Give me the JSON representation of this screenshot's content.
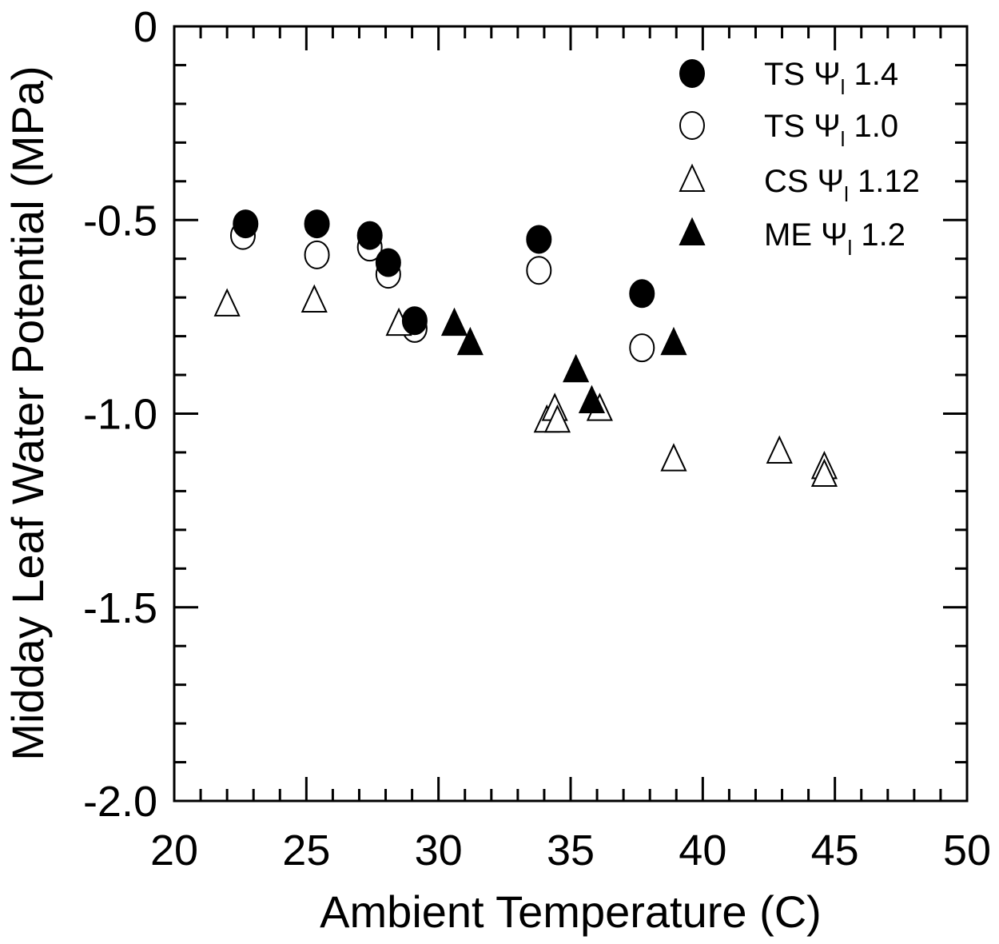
{
  "chart_data": {
    "type": "scatter",
    "xlabel": "Ambient Temperature (C)",
    "ylabel": "Midday Leaf Water Potential (MPa)",
    "xlim": [
      20,
      50
    ],
    "ylim": [
      -2.0,
      0
    ],
    "xticks": [
      "20",
      "25",
      "30",
      "35",
      "40",
      "45",
      "50"
    ],
    "yticks": [
      "0",
      "-0.5",
      "-1.0",
      "-1.5",
      "-2.0"
    ],
    "grid": false,
    "legend_position": "top-right",
    "series": [
      {
        "name": "TS Ψl 1.4",
        "legend_prefix": "TS Ψ",
        "legend_sub": "l",
        "legend_suffix": " 1.4",
        "marker": "filled-circle",
        "points": [
          [
            22.7,
            -0.51
          ],
          [
            25.4,
            -0.51
          ],
          [
            27.4,
            -0.54
          ],
          [
            28.1,
            -0.61
          ],
          [
            29.1,
            -0.76
          ],
          [
            33.8,
            -0.55
          ],
          [
            37.7,
            -0.69
          ]
        ]
      },
      {
        "name": "TS Ψl 1.0",
        "legend_prefix": "TS Ψ",
        "legend_sub": "l",
        "legend_suffix": " 1.0",
        "marker": "open-circle",
        "points": [
          [
            22.6,
            -0.54
          ],
          [
            25.4,
            -0.59
          ],
          [
            27.4,
            -0.57
          ],
          [
            28.1,
            -0.64
          ],
          [
            29.1,
            -0.78
          ],
          [
            33.8,
            -0.63
          ],
          [
            37.7,
            -0.83
          ]
        ]
      },
      {
        "name": "CS Ψl 1.12",
        "legend_prefix": "CS Ψ",
        "legend_sub": "l",
        "legend_suffix": " 1.12",
        "marker": "open-triangle",
        "points": [
          [
            22.0,
            -0.72
          ],
          [
            25.3,
            -0.71
          ],
          [
            28.5,
            -0.77
          ],
          [
            34.1,
            -1.02
          ],
          [
            34.4,
            -0.99
          ],
          [
            34.5,
            -1.02
          ],
          [
            36.1,
            -0.99
          ],
          [
            38.9,
            -1.12
          ],
          [
            42.9,
            -1.1
          ],
          [
            44.6,
            -1.14
          ],
          [
            44.6,
            -1.16
          ]
        ]
      },
      {
        "name": "ME Ψl 1.2",
        "legend_prefix": "ME Ψ",
        "legend_sub": "l",
        "legend_suffix": " 1.2",
        "marker": "filled-triangle",
        "points": [
          [
            30.6,
            -0.77
          ],
          [
            31.2,
            -0.82
          ],
          [
            35.2,
            -0.89
          ],
          [
            35.8,
            -0.97
          ],
          [
            38.9,
            -0.82
          ]
        ]
      }
    ]
  }
}
